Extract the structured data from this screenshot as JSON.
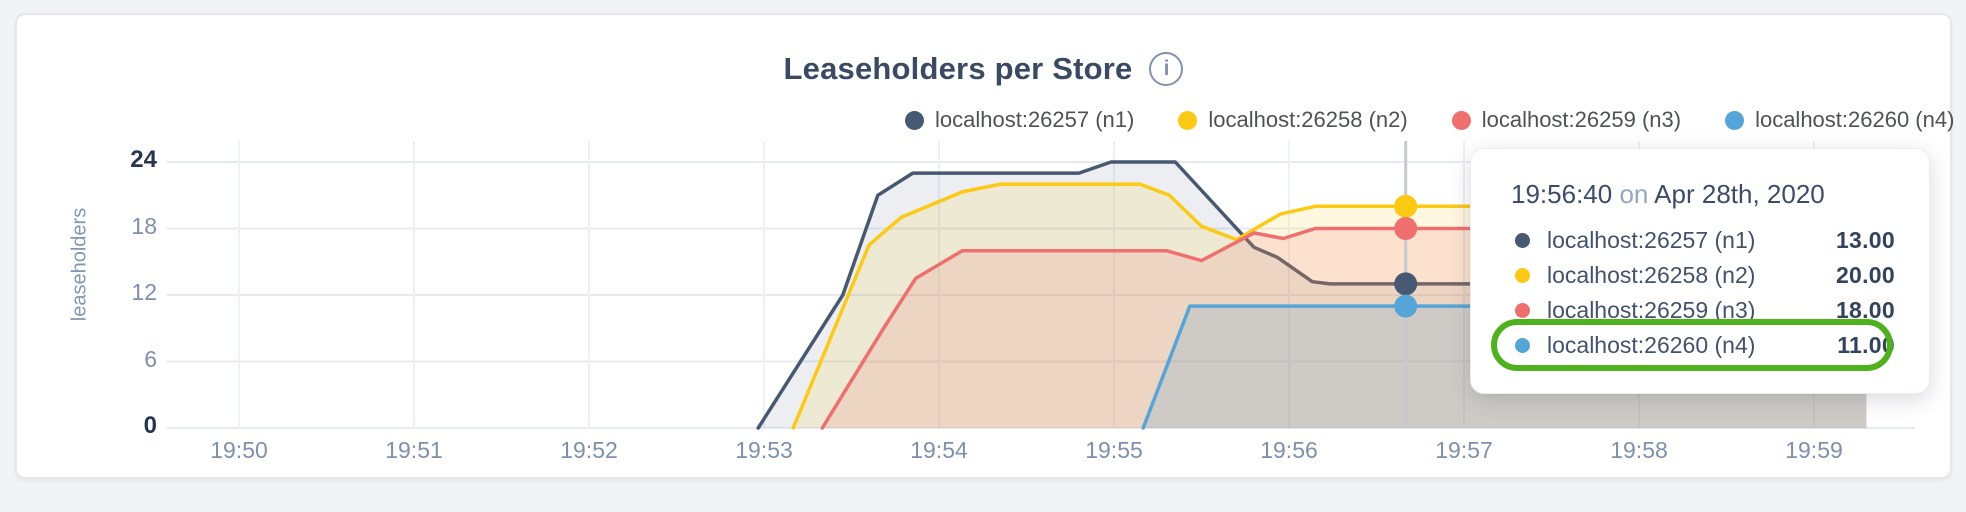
{
  "header": {
    "title": "Leaseholders per Store",
    "info_glyph": "i"
  },
  "tooltip": {
    "time": "19:56:40",
    "on_word": "on",
    "date": "Apr 28th, 2020",
    "rows": [
      {
        "label": "localhost:26257 (n1)",
        "value": "13.00",
        "color": "#475872",
        "highlighted": false
      },
      {
        "label": "localhost:26258 (n2)",
        "value": "20.00",
        "color": "#fcc913",
        "highlighted": false
      },
      {
        "label": "localhost:26259 (n3)",
        "value": "18.00",
        "color": "#ef6f6f",
        "highlighted": false
      },
      {
        "label": "localhost:26260 (n4)",
        "value": "11.00",
        "color": "#56a5d8",
        "highlighted": true
      }
    ],
    "highlight_color": "#4fb21d"
  },
  "chart_data": {
    "type": "area",
    "title": "Leaseholders per Store",
    "ylabel": "leaseholders",
    "ylim": [
      0,
      24
    ],
    "grid": true,
    "legend_position": "top",
    "yticks": [
      {
        "label": "24",
        "emphasis": true
      },
      {
        "label": "18",
        "emphasis": false
      },
      {
        "label": "12",
        "emphasis": false
      },
      {
        "label": "6",
        "emphasis": false
      },
      {
        "label": "0",
        "emphasis": true
      }
    ],
    "xticks": [
      "19:50",
      "19:51",
      "19:52",
      "19:53",
      "19:54",
      "19:55",
      "19:56",
      "19:57",
      "19:58",
      "19:59"
    ],
    "x_encoding": "seconds since 19:50:00",
    "hover": {
      "t_seconds": 400,
      "time_label": "19:56:40"
    },
    "series": [
      {
        "name": "localhost:26257 (n1)",
        "color": "#475872",
        "fill_opacity": 0.1,
        "hover_value": 13,
        "points_t_v": [
          [
            178,
            0
          ],
          [
            207,
            12
          ],
          [
            219,
            21
          ],
          [
            231,
            23
          ],
          [
            288,
            23
          ],
          [
            299,
            24
          ],
          [
            321,
            24
          ],
          [
            348,
            16.3
          ],
          [
            356,
            15.4
          ],
          [
            368,
            13.2
          ],
          [
            374,
            13
          ],
          [
            558,
            13
          ]
        ]
      },
      {
        "name": "localhost:26258 (n2)",
        "color": "#fcc913",
        "fill_opacity": 0.13,
        "hover_value": 20,
        "points_t_v": [
          [
            190,
            0
          ],
          [
            216,
            16.5
          ],
          [
            227,
            19
          ],
          [
            248,
            21.3
          ],
          [
            261,
            22
          ],
          [
            309,
            22
          ],
          [
            319,
            21
          ],
          [
            330,
            18.2
          ],
          [
            342,
            17
          ],
          [
            357,
            19.3
          ],
          [
            369,
            20
          ],
          [
            558,
            20
          ]
        ]
      },
      {
        "name": "localhost:26259 (n3)",
        "color": "#ef6f6f",
        "fill_opacity": 0.16,
        "hover_value": 18,
        "points_t_v": [
          [
            200,
            0
          ],
          [
            221,
            9
          ],
          [
            232,
            13.5
          ],
          [
            248,
            16
          ],
          [
            318,
            16
          ],
          [
            330,
            15.1
          ],
          [
            348,
            17.6
          ],
          [
            358,
            17.1
          ],
          [
            369,
            18
          ],
          [
            558,
            18
          ]
        ]
      },
      {
        "name": "localhost:26260 (n4)",
        "color": "#56a5d8",
        "fill_opacity": 0.2,
        "hover_value": 11,
        "points_t_v": [
          [
            310,
            0
          ],
          [
            326,
            11
          ],
          [
            558,
            11
          ]
        ]
      }
    ]
  }
}
